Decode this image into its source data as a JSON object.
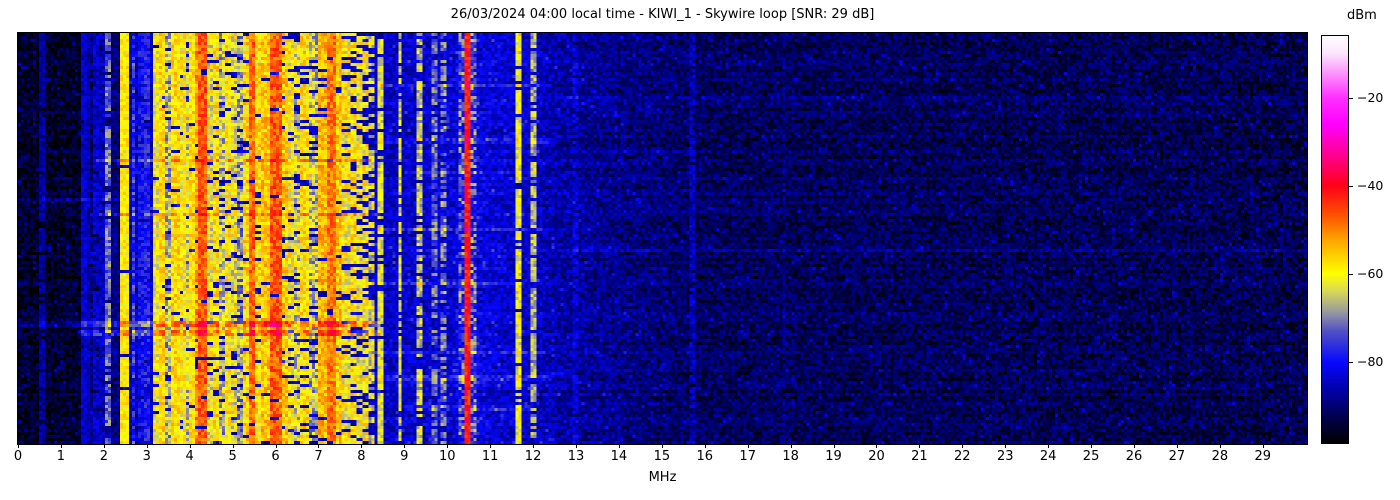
{
  "chart_data": {
    "type": "heatmap",
    "title": "26/03/2024 04:00 local time - KIWI_1 - Skywire loop [SNR: 29 dB]",
    "xlabel": "MHz",
    "x_range": [
      0,
      30.03
    ],
    "x_ticks": [
      0,
      1,
      2,
      3,
      4,
      5,
      6,
      7,
      8,
      9,
      10,
      11,
      12,
      13,
      14,
      15,
      16,
      17,
      18,
      19,
      20,
      21,
      22,
      23,
      24,
      25,
      26,
      27,
      28,
      29
    ],
    "y_axis_ticks": [],
    "grid": false,
    "colorbar": {
      "label": "dBm",
      "ticks": [
        -20,
        -40,
        -60,
        -80
      ],
      "vmax": -6,
      "vmin": -98.5,
      "stops": [
        [
          -6,
          "#ffffff"
        ],
        [
          -10,
          "#fce4fc"
        ],
        [
          -20,
          "#ff30ff"
        ],
        [
          -26,
          "#ff00ff"
        ],
        [
          -34,
          "#ff0080"
        ],
        [
          -40,
          "#ff0018"
        ],
        [
          -47,
          "#ff5500"
        ],
        [
          -52,
          "#ffa000"
        ],
        [
          -60,
          "#ffff00"
        ],
        [
          -64,
          "#d8d858"
        ],
        [
          -69,
          "#9494a4"
        ],
        [
          -73,
          "#5252c4"
        ],
        [
          -80,
          "#0808ff"
        ],
        [
          -87,
          "#0000a0"
        ],
        [
          -94,
          "#000038"
        ],
        [
          -98.5,
          "#000000"
        ]
      ]
    },
    "noise_floor": [
      [
        0,
        -95
      ],
      [
        1.45,
        -95
      ],
      [
        1.55,
        -89.5
      ],
      [
        2.35,
        -89.5
      ],
      [
        2.5,
        -85
      ],
      [
        8.3,
        -84.5
      ],
      [
        9.9,
        -83.5
      ],
      [
        10.5,
        -82
      ],
      [
        11.3,
        -83.5
      ],
      [
        12.1,
        -84.5
      ],
      [
        12.5,
        -86
      ],
      [
        13.5,
        -88
      ],
      [
        16,
        -91.5
      ],
      [
        30,
        -92.5
      ]
    ],
    "jitter_db": 4.5,
    "bands": [
      [
        0.53,
        0.57,
        -87,
        3,
        0.9
      ],
      [
        1.5,
        1.54,
        -84,
        3,
        0.95
      ],
      [
        1.6,
        1.64,
        -86,
        3,
        0.9
      ],
      [
        1.78,
        1.82,
        -84,
        4,
        0.9
      ],
      [
        1.93,
        1.97,
        -85,
        4,
        0.85
      ],
      [
        2.06,
        2.11,
        -72,
        6,
        0.8
      ],
      [
        2.42,
        2.52,
        -59,
        4,
        0.97
      ],
      [
        2.66,
        2.72,
        -76,
        6,
        0.85
      ],
      [
        2.82,
        2.87,
        -80,
        5,
        0.9
      ],
      [
        3.0,
        3.05,
        -78,
        5,
        0.85
      ],
      [
        3.18,
        3.3,
        -61,
        6,
        0.95
      ],
      [
        3.33,
        3.41,
        -57,
        5,
        0.95
      ],
      [
        3.48,
        3.56,
        -66,
        8,
        0.9
      ],
      [
        3.6,
        3.72,
        -57,
        5,
        0.97
      ],
      [
        3.78,
        3.86,
        -60,
        6,
        0.9
      ],
      [
        3.9,
        3.98,
        -64,
        8,
        0.85
      ],
      [
        4.02,
        4.12,
        -58,
        5,
        0.95
      ],
      [
        4.18,
        4.24,
        -52,
        6,
        0.9
      ],
      [
        4.26,
        4.34,
        -47,
        5,
        0.95
      ],
      [
        4.4,
        4.5,
        -62,
        7,
        0.9
      ],
      [
        4.55,
        4.65,
        -58,
        6,
        0.9
      ],
      [
        4.72,
        4.8,
        -66,
        8,
        0.8
      ],
      [
        4.85,
        4.95,
        -59,
        6,
        0.9
      ],
      [
        5.0,
        5.08,
        -62,
        7,
        0.85
      ],
      [
        5.15,
        5.22,
        -68,
        8,
        0.8
      ],
      [
        5.28,
        5.36,
        -57,
        6,
        0.9
      ],
      [
        5.38,
        5.46,
        -48,
        5,
        0.95
      ],
      [
        5.52,
        5.62,
        -58,
        6,
        0.9
      ],
      [
        5.7,
        5.8,
        -55,
        5,
        0.95
      ],
      [
        5.9,
        6.08,
        -47,
        5,
        0.97
      ],
      [
        6.12,
        6.22,
        -56,
        6,
        0.9
      ],
      [
        6.28,
        6.38,
        -60,
        7,
        0.85
      ],
      [
        6.45,
        6.55,
        -64,
        8,
        0.8
      ],
      [
        6.62,
        6.72,
        -58,
        6,
        0.85
      ],
      [
        6.8,
        6.92,
        -66,
        8,
        0.75
      ],
      [
        7.0,
        7.18,
        -54,
        5,
        0.95
      ],
      [
        7.22,
        7.34,
        -49,
        5,
        0.95
      ],
      [
        7.36,
        7.52,
        -55,
        5,
        0.95
      ],
      [
        7.58,
        7.7,
        -60,
        7,
        0.85
      ],
      [
        7.76,
        7.86,
        -58,
        6,
        0.8
      ],
      [
        7.92,
        8.0,
        -61,
        7,
        0.7
      ],
      [
        8.06,
        8.14,
        -60,
        7,
        0.6
      ],
      [
        8.22,
        8.3,
        -64,
        8,
        0.6
      ],
      [
        8.44,
        8.48,
        -63,
        5,
        0.85
      ],
      [
        8.87,
        8.91,
        -64,
        5,
        0.8
      ],
      [
        9.32,
        9.36,
        -65,
        6,
        0.75
      ],
      [
        9.67,
        9.71,
        -72,
        6,
        0.7
      ],
      [
        9.9,
        9.94,
        -70,
        6,
        0.6
      ],
      [
        10.28,
        10.64,
        -75,
        11,
        0.9
      ],
      [
        10.43,
        10.5,
        -42,
        5,
        1.0
      ],
      [
        11.65,
        11.7,
        -62,
        5,
        0.85
      ],
      [
        12.0,
        12.06,
        -67,
        6,
        0.8
      ],
      [
        12.97,
        13.02,
        -83,
        4,
        0.8
      ],
      [
        15.68,
        15.72,
        -85,
        4,
        0.8
      ],
      [
        17.82,
        17.86,
        -88,
        3,
        0.7
      ]
    ],
    "streaks": [
      [
        0.695,
        0.715,
        1.4,
        8.45,
        9
      ],
      [
        0.72,
        0.737,
        1.4,
        8.45,
        7
      ],
      [
        0.7,
        0.712,
        0.0,
        1.4,
        5
      ],
      [
        0.3,
        0.308,
        1.8,
        8.3,
        6
      ],
      [
        0.435,
        0.443,
        1.9,
        8.45,
        5
      ],
      [
        0.118,
        0.126,
        8.3,
        12.4,
        5
      ],
      [
        0.255,
        0.263,
        8.3,
        12.4,
        4
      ],
      [
        0.335,
        0.343,
        9.0,
        12.2,
        4
      ],
      [
        0.468,
        0.476,
        8.3,
        12.4,
        5
      ],
      [
        0.6,
        0.608,
        8.3,
        11.6,
        4
      ],
      [
        0.77,
        0.778,
        8.3,
        12.3,
        4
      ],
      [
        0.832,
        0.84,
        8.3,
        12.4,
        5
      ],
      [
        0.905,
        0.913,
        9.0,
        12.0,
        4
      ],
      [
        0.4,
        0.407,
        0.0,
        2.3,
        4
      ],
      [
        0.555,
        0.562,
        0.0,
        1.5,
        4
      ],
      [
        0.15,
        0.156,
        12.5,
        30,
        2.5
      ],
      [
        0.52,
        0.526,
        12.5,
        30,
        2.5
      ]
    ]
  }
}
